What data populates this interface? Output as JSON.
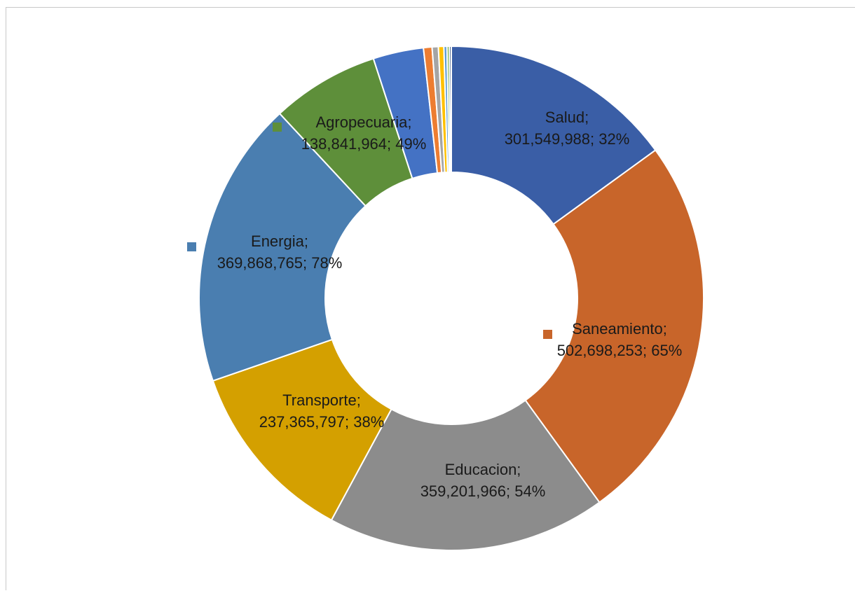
{
  "chart_data": {
    "type": "pie",
    "variant": "donut",
    "legend": "none",
    "slices": [
      {
        "name": "Salud",
        "value": 301549988,
        "pct_label": "32%",
        "color": "#3a5ea6",
        "label_line1": "Salud;",
        "label_line2": "301,549,988; 32%"
      },
      {
        "name": "Saneamiento",
        "value": 502698253,
        "pct_label": "65%",
        "color": "#c8652a",
        "label_line1": "Saneamiento;",
        "label_line2": "502,698,253; 65%"
      },
      {
        "name": "Educacion",
        "value": 359201966,
        "pct_label": "54%",
        "color": "#8c8c8c",
        "label_line1": "Educacion;",
        "label_line2": "359,201,966; 54%"
      },
      {
        "name": "Transporte",
        "value": 237365797,
        "pct_label": "38%",
        "color": "#d4a000",
        "label_line1": "Transporte;",
        "label_line2": "237,365,797; 38%"
      },
      {
        "name": "Energia",
        "value": 369868765,
        "pct_label": "78%",
        "color": "#4a7eb0",
        "label_line1": "Energia;",
        "label_line2": "369,868,765; 78%"
      },
      {
        "name": "Agropecuaria",
        "value": 138841964,
        "pct_label": "49%",
        "color": "#5e8f3a",
        "label_line1": "Agropecuaria;",
        "label_line2": "138,841,964; 49%"
      },
      {
        "name": "",
        "value": 65000000,
        "color": "#4472c4"
      },
      {
        "name": "",
        "value": 11000000,
        "color": "#ed7d31"
      },
      {
        "name": "",
        "value": 8000000,
        "color": "#a5a5a5"
      },
      {
        "name": "",
        "value": 7000000,
        "color": "#ffc000"
      },
      {
        "name": "",
        "value": 4000000,
        "color": "#5b9bd5"
      },
      {
        "name": "",
        "value": 3000000,
        "color": "#70ad47"
      },
      {
        "name": "",
        "value": 2500000,
        "color": "#264478"
      }
    ]
  }
}
